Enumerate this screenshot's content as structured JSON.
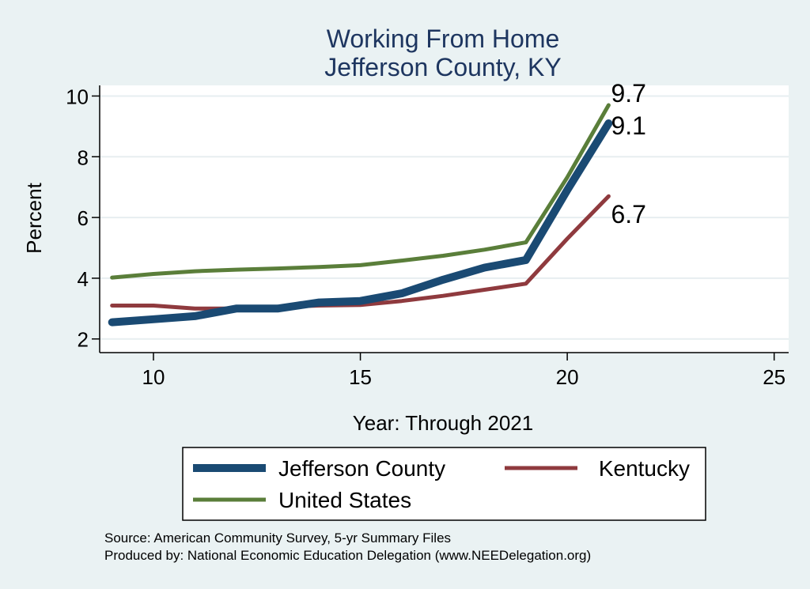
{
  "chart_data": {
    "type": "line",
    "title_lines": [
      "Working From Home",
      "Jefferson County, KY"
    ],
    "xlabel": "Year: Through 2021",
    "ylabel": "Percent",
    "xlim": [
      8.7,
      25.35
    ],
    "ylim": [
      1.55,
      10.35
    ],
    "xticks": [
      10,
      15,
      20,
      25
    ],
    "yticks": [
      2,
      4,
      6,
      8,
      10
    ],
    "grid": true,
    "legend_position": "bottom",
    "series": [
      {
        "name": "Jefferson County",
        "color": "#1a4a73",
        "x": [
          9,
          10,
          11,
          12,
          13,
          14,
          15,
          16,
          17,
          18,
          19,
          20,
          21
        ],
        "y": [
          2.55,
          2.65,
          2.75,
          3.0,
          3.0,
          3.2,
          3.25,
          3.5,
          3.95,
          4.35,
          4.6,
          6.9,
          9.1
        ],
        "end_label": "9.1"
      },
      {
        "name": "Kentucky",
        "color": "#8f3a3e",
        "x": [
          9,
          10,
          11,
          12,
          13,
          14,
          15,
          16,
          17,
          18,
          19,
          20,
          21
        ],
        "y": [
          3.1,
          3.1,
          3.0,
          3.0,
          3.05,
          3.1,
          3.12,
          3.25,
          3.42,
          3.62,
          3.82,
          5.3,
          6.7
        ],
        "end_label": "6.7"
      },
      {
        "name": "United States",
        "color": "#5a7e3a",
        "x": [
          9,
          10,
          11,
          12,
          13,
          14,
          15,
          16,
          17,
          18,
          19,
          20,
          21
        ],
        "y": [
          4.02,
          4.14,
          4.23,
          4.28,
          4.32,
          4.37,
          4.43,
          4.58,
          4.74,
          4.94,
          5.18,
          7.32,
          9.7
        ],
        "end_label": "9.7"
      }
    ]
  },
  "notes": {
    "source": "Source: American Community Survey, 5-yr Summary Files",
    "produced": "Produced by: National Economic Education Delegation (www.NEEDelegation.org)"
  }
}
